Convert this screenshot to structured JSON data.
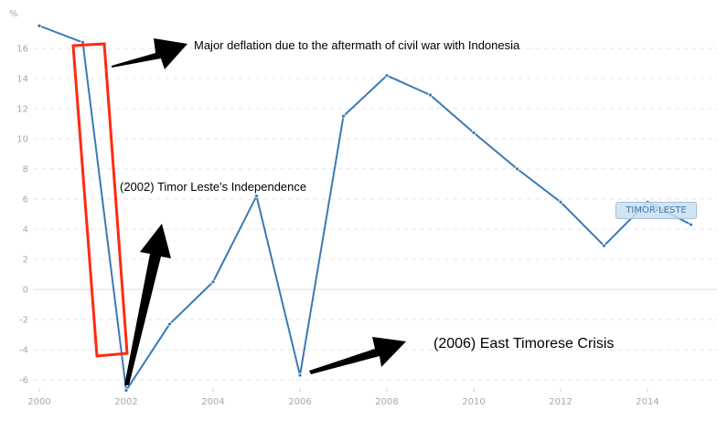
{
  "chart_data": {
    "type": "line",
    "title": "",
    "xlabel": "",
    "ylabel": "%",
    "ylim": [
      -7,
      17.5
    ],
    "xlim": [
      2000,
      2015
    ],
    "grid": true,
    "yticks": [
      -6,
      -4,
      -2,
      0,
      2,
      4,
      6,
      8,
      10,
      12,
      14,
      16
    ],
    "xticks": [
      2000,
      2002,
      2004,
      2006,
      2008,
      2010,
      2012,
      2014
    ],
    "series": [
      {
        "name": "TIMOR-LESTE",
        "color": "#3a7ab3",
        "x": [
          2000,
          2001,
          2002,
          2003,
          2004,
          2005,
          2006,
          2007,
          2008,
          2009,
          2010,
          2011,
          2012,
          2013,
          2014,
          2015
        ],
        "values": [
          17.5,
          16.4,
          -6.7,
          -2.3,
          0.5,
          6.2,
          -5.7,
          11.5,
          14.2,
          12.9,
          10.4,
          8.0,
          5.8,
          2.9,
          5.8,
          4.3
        ]
      }
    ],
    "legend": {
      "position": "inline-right",
      "entries": [
        "TIMOR-LESTE"
      ]
    },
    "annotations": [
      {
        "text": "Major deflation due to the aftermath of civil war with Indonesia",
        "target": "2001-2002"
      },
      {
        "text": "(2002) Timor Leste's Independence",
        "target": 2002
      },
      {
        "text": "(2006) East Timorese Crisis",
        "target": 2006
      }
    ]
  },
  "labels": {
    "unit": "%",
    "series_tag": "TIMOR-LESTE",
    "annotation_deflation": "Major deflation due to the aftermath of civil war with Indonesia",
    "annotation_independence": "(2002) Timor Leste's Independence",
    "annotation_crisis": "(2006) East Timorese Crisis"
  },
  "colors": {
    "line": "#3a7ab3",
    "highlight_box": "#ff2a10",
    "arrow": "#000000",
    "grid": "#e2e2e2",
    "tick_text": "#a8a8a8"
  }
}
